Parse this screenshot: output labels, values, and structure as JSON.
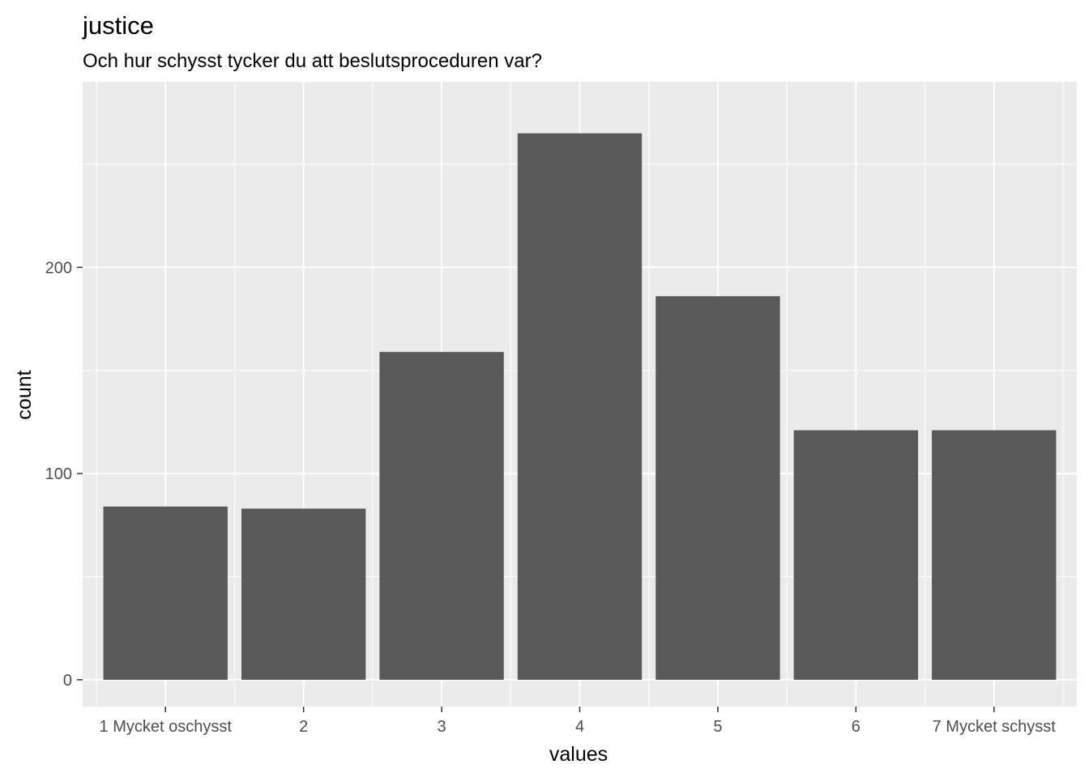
{
  "chart_data": {
    "type": "bar",
    "title": "justice",
    "subtitle": "Och hur schysst tycker du att beslutsproceduren var?",
    "xlabel": "values",
    "ylabel": "count",
    "categories": [
      "1 Mycket oschysst",
      "2",
      "3",
      "4",
      "5",
      "6",
      "7 Mycket schysst"
    ],
    "values": [
      84,
      83,
      159,
      265,
      186,
      121,
      121
    ],
    "y_ticks": [
      0,
      100,
      200
    ],
    "ylim": [
      -13,
      290
    ],
    "grid": true,
    "legend": "none",
    "colors": {
      "bar": "#595959",
      "panel_background": "#ebebeb",
      "grid": "#ffffff",
      "tick_text": "#4d4d4d",
      "tick_mark": "#333333"
    }
  }
}
